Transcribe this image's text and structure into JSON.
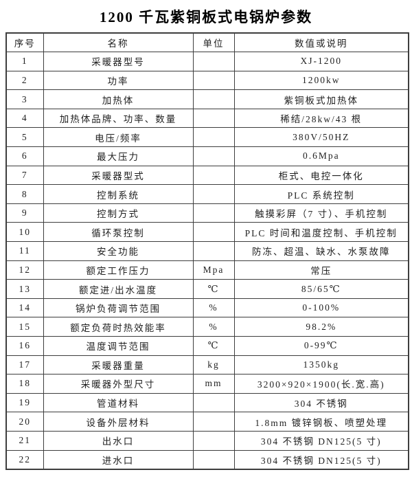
{
  "page": {
    "title": "1200 千瓦紫铜板式电锅炉参数"
  },
  "colors": {
    "background": "#ffffff",
    "border": "#3d3d3d",
    "text": "#1f1f1f",
    "title_text": "#000000"
  },
  "table": {
    "headers": [
      "序号",
      "名称",
      "单位",
      "数值或说明"
    ],
    "rows": [
      {
        "no": "1",
        "name": "采暖器型号",
        "unit": "",
        "value": "XJ-1200"
      },
      {
        "no": "2",
        "name": "功率",
        "unit": "",
        "value": "1200kw"
      },
      {
        "no": "3",
        "name": "加热体",
        "unit": "",
        "value": "紫铜板式加热体"
      },
      {
        "no": "4",
        "name": "加热体品牌、功率、数量",
        "unit": "",
        "value": "稀结/28kw/43 根"
      },
      {
        "no": "5",
        "name": "电压/频率",
        "unit": "",
        "value": "380V/50HZ"
      },
      {
        "no": "6",
        "name": "最大压力",
        "unit": "",
        "value": "0.6Mpa"
      },
      {
        "no": "7",
        "name": "采暖器型式",
        "unit": "",
        "value": "柜式、电控一体化"
      },
      {
        "no": "8",
        "name": "控制系统",
        "unit": "",
        "value": "PLC 系统控制"
      },
      {
        "no": "9",
        "name": "控制方式",
        "unit": "",
        "value": "触摸彩屏（7 寸）、手机控制"
      },
      {
        "no": "10",
        "name": "循环泵控制",
        "unit": "",
        "value": "PLC 时间和温度控制、手机控制"
      },
      {
        "no": "11",
        "name": "安全功能",
        "unit": "",
        "value": "防冻、超温、缺水、水泵故障"
      },
      {
        "no": "12",
        "name": "额定工作压力",
        "unit": "Mpa",
        "value": "常压"
      },
      {
        "no": "13",
        "name": "额定进/出水温度",
        "unit": "℃",
        "value": "85/65℃"
      },
      {
        "no": "14",
        "name": "锅炉负荷调节范围",
        "unit": "%",
        "value": "0-100%"
      },
      {
        "no": "15",
        "name": "额定负荷时热效能率",
        "unit": "%",
        "value": "98.2%"
      },
      {
        "no": "16",
        "name": "温度调节范围",
        "unit": "℃",
        "value": "0-99℃"
      },
      {
        "no": "17",
        "name": "采暖器重量",
        "unit": "kg",
        "value": "1350kg"
      },
      {
        "no": "18",
        "name": "采暖器外型尺寸",
        "unit": "mm",
        "value": "3200×920×1900(长.宽.高)"
      },
      {
        "no": "19",
        "name": "管道材料",
        "unit": "",
        "value": "304 不锈钢"
      },
      {
        "no": "20",
        "name": "设备外层材料",
        "unit": "",
        "value": "1.8mm 镀锌钢板、喷塑处理"
      },
      {
        "no": "21",
        "name": "出水口",
        "unit": "",
        "value": "304 不锈钢 DN125(5 寸)"
      },
      {
        "no": "22",
        "name": "进水口",
        "unit": "",
        "value": "304 不锈钢 DN125(5 寸)"
      }
    ]
  }
}
